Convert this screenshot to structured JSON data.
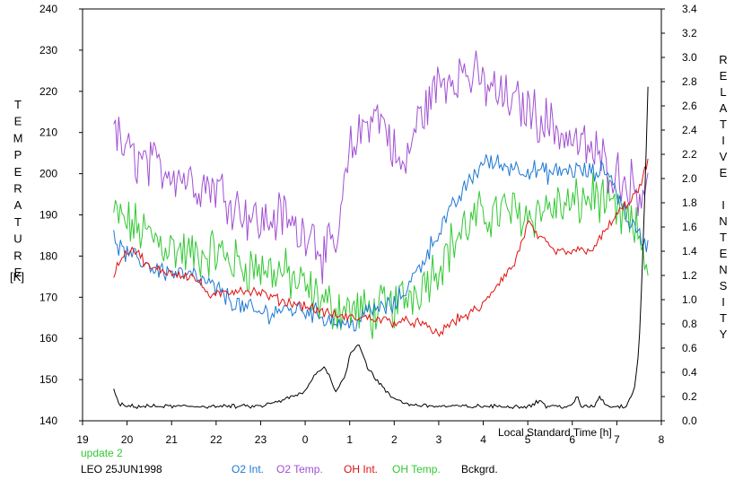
{
  "chart_data": {
    "type": "line",
    "left_axis": {
      "label": "TEMPERATURE",
      "unit": "[K]",
      "ylim": [
        140,
        240
      ],
      "ticks": [
        "140",
        "150",
        "160",
        "170",
        "180",
        "190",
        "200",
        "210",
        "220",
        "230",
        "240"
      ]
    },
    "right_axis": {
      "label": "RELATIVE INTENSITY",
      "ylim": [
        0.0,
        3.4
      ],
      "ticks": [
        "0.0",
        "0.2",
        "0.4",
        "0.6",
        "0.8",
        "1.0",
        "1.2",
        "1.4",
        "1.6",
        "1.8",
        "2.0",
        "2.2",
        "2.4",
        "2.6",
        "2.8",
        "3.0",
        "3.2",
        "3.4"
      ]
    },
    "x_axis": {
      "label": "Local Standard Time [h]",
      "xlim": [
        19,
        8
      ],
      "ticks": [
        "19",
        "20",
        "21",
        "22",
        "23",
        "0",
        "1",
        "2",
        "3",
        "4",
        "5",
        "6",
        "7",
        "8"
      ]
    },
    "update_note": "update 2",
    "site_date": "LEO 25JUN1998",
    "grid": false,
    "legend_position": "bottom",
    "series": [
      {
        "name": "O2 Int.",
        "axis": "left",
        "color": "#1e78d2",
        "noise": 2.0,
        "x": [
          19.7,
          20.0,
          20.3,
          20.6,
          21.0,
          21.5,
          22.0,
          22.5,
          23.0,
          23.5,
          24.0,
          24.5,
          25.0,
          25.5,
          26.0,
          26.5,
          27.0,
          27.5,
          28.0,
          28.5,
          29.0,
          29.5,
          30.0,
          30.5,
          30.8,
          31.2,
          31.5,
          31.7
        ],
        "values": [
          184,
          180,
          179,
          177,
          176,
          175,
          172,
          168,
          166,
          167,
          167,
          165,
          163,
          167,
          168,
          176,
          186,
          195,
          203,
          202,
          201,
          200,
          201,
          200,
          201,
          190,
          185,
          182
        ]
      },
      {
        "name": "O2 Temp.",
        "axis": "left",
        "color": "#a050d2",
        "noise": 5.0,
        "x": [
          19.7,
          20.0,
          20.5,
          21.0,
          21.5,
          22.0,
          22.5,
          23.0,
          23.5,
          23.9,
          24.1,
          24.4,
          24.7,
          25.0,
          25.5,
          25.8,
          26.0,
          26.2,
          26.5,
          27.0,
          27.5,
          28.0,
          28.5,
          29.0,
          29.5,
          30.0,
          30.5,
          31.0,
          31.5,
          31.7
        ],
        "values": [
          210,
          205,
          202,
          201,
          198,
          197,
          192,
          188,
          190,
          185,
          188,
          180,
          182,
          205,
          215,
          212,
          205,
          200,
          212,
          222,
          225,
          222,
          218,
          216,
          212,
          208,
          205,
          200,
          196,
          199
        ]
      },
      {
        "name": "OH Int.",
        "axis": "left",
        "color": "#e01010",
        "noise": 1.0,
        "x": [
          19.7,
          19.9,
          20.1,
          20.3,
          20.5,
          21.0,
          21.5,
          21.9,
          22.5,
          23.0,
          23.5,
          24.0,
          24.5,
          25.0,
          25.5,
          26.0,
          26.5,
          27.0,
          27.3,
          27.7,
          28.0,
          28.3,
          28.7,
          29.0,
          29.3,
          29.6,
          30.0,
          30.5,
          30.8,
          31.0,
          31.5,
          31.7
        ],
        "values": [
          176,
          180,
          182,
          180,
          177,
          176,
          175,
          170,
          172,
          171,
          169,
          168,
          166,
          165,
          165,
          164,
          164,
          161,
          164,
          166,
          168,
          173,
          178,
          188,
          184,
          181,
          181,
          182,
          187,
          190,
          196,
          203
        ]
      },
      {
        "name": "OH Temp.",
        "axis": "left",
        "color": "#32c832",
        "noise": 5.0,
        "x": [
          19.7,
          20.0,
          20.5,
          21.0,
          21.5,
          22.0,
          22.5,
          23.0,
          23.5,
          24.0,
          24.5,
          25.0,
          25.5,
          26.0,
          26.5,
          27.0,
          27.5,
          28.0,
          28.5,
          29.0,
          29.5,
          30.0,
          30.5,
          31.0,
          31.5,
          31.7
        ],
        "values": [
          190,
          188,
          185,
          182,
          180,
          181,
          178,
          177,
          176,
          172,
          168,
          167,
          166,
          168,
          172,
          178,
          186,
          190,
          191,
          190,
          192,
          192,
          195,
          190,
          185,
          178
        ]
      },
      {
        "name": "Bckgrd.",
        "axis": "left",
        "color": "#000000",
        "noise": 0.4,
        "x": [
          19.7,
          19.8,
          20.0,
          21.0,
          22.0,
          23.0,
          23.5,
          24.0,
          24.2,
          24.4,
          24.5,
          24.7,
          24.9,
          25.0,
          25.2,
          25.4,
          25.6,
          25.9,
          26.3,
          27.0,
          28.0,
          29.0,
          29.3,
          29.4,
          29.5,
          30.0,
          30.1,
          30.2,
          30.5,
          30.6,
          30.8,
          31.2,
          31.4,
          31.5,
          31.6,
          31.7
        ],
        "values": [
          148,
          144,
          143.5,
          143.5,
          143.5,
          143.5,
          145,
          147,
          151,
          153,
          152,
          147,
          151,
          156,
          159,
          153,
          150,
          146,
          144,
          143.5,
          143.5,
          143.5,
          145,
          143.5,
          143.5,
          143.5,
          146,
          143.5,
          143.5,
          146,
          143.5,
          143.5,
          148,
          158,
          185,
          221
        ]
      }
    ]
  }
}
